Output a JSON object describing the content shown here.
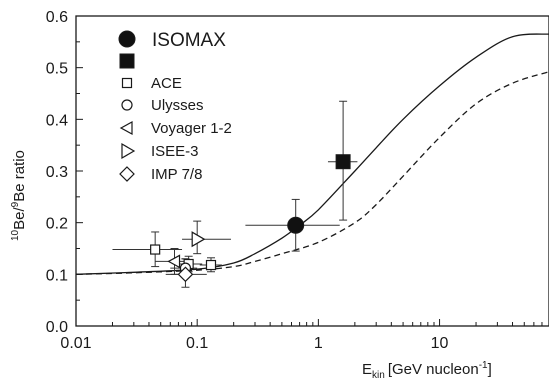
{
  "chart_data": {
    "type": "scatter",
    "title": "",
    "xlabel": {
      "main": "E",
      "sub": "kin",
      "unit": "[GeV nucleon",
      "sup": "-1",
      "close": "]"
    },
    "ylabel": {
      "sup1": "10",
      "mid": "Be/",
      "sup2": "9",
      "rest": "Be ratio"
    },
    "xscale": "log",
    "xlim": [
      0.01,
      80
    ],
    "ylim": [
      0.0,
      0.6
    ],
    "x_ticks": [
      {
        "value": 0.01,
        "label": "0.01"
      },
      {
        "value": 0.1,
        "label": "0.1"
      },
      {
        "value": 1,
        "label": "1"
      },
      {
        "value": 10,
        "label": "10"
      }
    ],
    "y_ticks": [
      {
        "value": 0.0,
        "label": "0.0"
      },
      {
        "value": 0.1,
        "label": "0.1"
      },
      {
        "value": 0.2,
        "label": "0.2"
      },
      {
        "value": 0.3,
        "label": "0.3"
      },
      {
        "value": 0.4,
        "label": "0.4"
      },
      {
        "value": 0.5,
        "label": "0.5"
      },
      {
        "value": 0.6,
        "label": "0.6"
      }
    ],
    "grid": false,
    "legend_position": "top-left",
    "legend": [
      {
        "label": "ISOMAX",
        "marker": "filled-circle",
        "large": true
      },
      {
        "label": "",
        "marker": "filled-square",
        "large": true
      },
      {
        "label": "ACE",
        "marker": "open-square"
      },
      {
        "label": "Ulysses",
        "marker": "open-circle"
      },
      {
        "label": "Voyager 1-2",
        "marker": "open-triangle-left"
      },
      {
        "label": "ISEE-3",
        "marker": "open-triangle-right"
      },
      {
        "label": "IMP 7/8",
        "marker": "open-diamond"
      }
    ],
    "series": [
      {
        "marker": "filled-circle",
        "points": [
          {
            "x": 0.65,
            "y": 0.195,
            "xerr": [
              0.25,
              1.5
            ],
            "yerr": [
              0.145,
              0.245
            ]
          }
        ]
      },
      {
        "marker": "filled-square",
        "points": [
          {
            "x": 1.6,
            "y": 0.318,
            "xerr": [
              1.2,
              2.1
            ],
            "yerr": [
              0.205,
              0.435
            ]
          }
        ]
      },
      {
        "marker": "open-square",
        "points": [
          {
            "x": 0.045,
            "y": 0.148,
            "xerr": [
              0.02,
              0.075
            ],
            "yerr": [
              0.115,
              0.182
            ]
          },
          {
            "x": 0.085,
            "y": 0.12,
            "xerr": [
              0.065,
              0.11
            ],
            "yerr": [
              0.105,
              0.135
            ]
          },
          {
            "x": 0.13,
            "y": 0.118,
            "xerr": [
              0.105,
              0.16
            ],
            "yerr": [
              0.105,
              0.132
            ]
          }
        ]
      },
      {
        "marker": "open-circle",
        "points": [
          {
            "x": 0.08,
            "y": 0.112,
            "xerr": [
              0.06,
              0.1
            ],
            "yerr": [
              0.095,
              0.13
            ]
          }
        ]
      },
      {
        "marker": "open-triangle-left",
        "points": [
          {
            "x": 0.065,
            "y": 0.125,
            "xerr": [
              0.045,
              0.09
            ],
            "yerr": [
              0.1,
              0.15
            ]
          }
        ]
      },
      {
        "marker": "open-triangle-right",
        "points": [
          {
            "x": 0.1,
            "y": 0.168,
            "xerr": [
              0.075,
              0.19
            ],
            "yerr": [
              0.14,
              0.203
            ]
          }
        ]
      },
      {
        "marker": "open-diamond",
        "points": [
          {
            "x": 0.08,
            "y": 0.1,
            "xerr": [
              0.055,
              0.12
            ],
            "yerr": [
              0.075,
              0.13
            ]
          }
        ]
      }
    ],
    "curves": [
      {
        "style": "solid",
        "points": [
          [
            0.01,
            0.1
          ],
          [
            0.03,
            0.104
          ],
          [
            0.1,
            0.11
          ],
          [
            0.2,
            0.122
          ],
          [
            0.3,
            0.14
          ],
          [
            0.5,
            0.17
          ],
          [
            0.7,
            0.195
          ],
          [
            1,
            0.225
          ],
          [
            2,
            0.3
          ],
          [
            3,
            0.345
          ],
          [
            5,
            0.4
          ],
          [
            10,
            0.465
          ],
          [
            20,
            0.52
          ],
          [
            40,
            0.56
          ],
          [
            80,
            0.565
          ]
        ]
      },
      {
        "style": "dashed",
        "points": [
          [
            0.01,
            0.1
          ],
          [
            0.03,
            0.103
          ],
          [
            0.1,
            0.108
          ],
          [
            0.2,
            0.115
          ],
          [
            0.3,
            0.125
          ],
          [
            0.5,
            0.14
          ],
          [
            1,
            0.162
          ],
          [
            2,
            0.2
          ],
          [
            3,
            0.235
          ],
          [
            5,
            0.29
          ],
          [
            10,
            0.365
          ],
          [
            20,
            0.43
          ],
          [
            40,
            0.47
          ],
          [
            80,
            0.492
          ]
        ]
      }
    ]
  }
}
